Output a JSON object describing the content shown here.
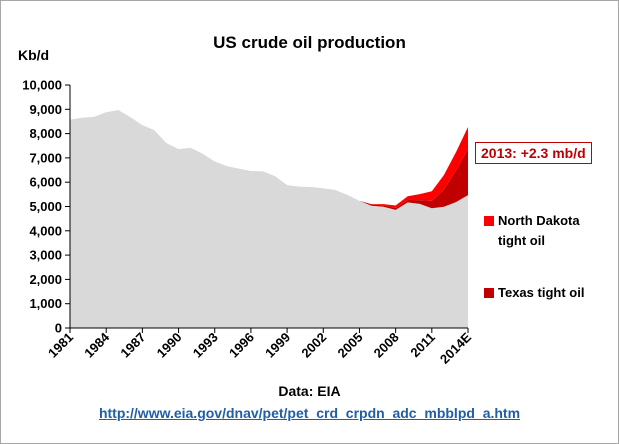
{
  "chart_data": {
    "type": "area",
    "title": "US crude oil production",
    "ylabel": "Kb/d",
    "ylim": [
      0,
      10000
    ],
    "yticks": [
      "0",
      "1,000",
      "2,000",
      "3,000",
      "4,000",
      "5,000",
      "6,000",
      "7,000",
      "8,000",
      "9,000",
      "10,000"
    ],
    "ytick_values": [
      0,
      1000,
      2000,
      3000,
      4000,
      5000,
      6000,
      7000,
      8000,
      9000,
      10000
    ],
    "xtick_labels": [
      "1981",
      "1984",
      "1987",
      "1990",
      "1993",
      "1996",
      "1999",
      "2002",
      "2005",
      "2008",
      "2011",
      "2014E"
    ],
    "x": [
      1981,
      1982,
      1983,
      1984,
      1985,
      1986,
      1987,
      1988,
      1989,
      1990,
      1991,
      1992,
      1993,
      1994,
      1995,
      1996,
      1997,
      1998,
      1999,
      2000,
      2001,
      2002,
      2003,
      2004,
      2005,
      2006,
      2007,
      2008,
      2009,
      2010,
      2011,
      2012,
      2013,
      2014
    ],
    "grid": false,
    "stacked": true,
    "series": [
      {
        "name": "",
        "color": "#d9d9d9",
        "values": [
          8570,
          8650,
          8690,
          8880,
          8970,
          8680,
          8350,
          8140,
          7610,
          7360,
          7420,
          7170,
          6850,
          6660,
          6560,
          6460,
          6450,
          6250,
          5880,
          5820,
          5800,
          5750,
          5680,
          5480,
          5230,
          5030,
          4990,
          4860,
          5170,
          5110,
          4930,
          4990,
          5180,
          5470
        ]
      },
      {
        "name": "Texas tight oil",
        "color": "#c00000",
        "values": [
          0,
          0,
          0,
          0,
          0,
          0,
          0,
          0,
          0,
          0,
          0,
          0,
          0,
          0,
          0,
          0,
          0,
          0,
          0,
          0,
          0,
          0,
          0,
          0,
          0,
          50,
          60,
          80,
          100,
          150,
          300,
          700,
          1300,
          1900
        ]
      },
      {
        "name": "North Dakota tight oil",
        "color": "#ff0000",
        "values": [
          0,
          0,
          0,
          0,
          0,
          0,
          0,
          0,
          0,
          0,
          0,
          0,
          0,
          0,
          0,
          0,
          0,
          0,
          0,
          0,
          0,
          0,
          0,
          0,
          0,
          20,
          50,
          100,
          150,
          250,
          400,
          600,
          750,
          900
        ]
      }
    ],
    "annotation": "2013: +2.3 mb/d",
    "legend_position": "right"
  },
  "source_text": "Data: EIA",
  "link_text": "http://www.eia.gov/dnav/pet/pet_crd_crpdn_adc_mbblpd_a.htm",
  "legend": {
    "north_dakota_line1": "North Dakota",
    "north_dakota_line2": "tight oil",
    "texas": "Texas tight oil"
  }
}
